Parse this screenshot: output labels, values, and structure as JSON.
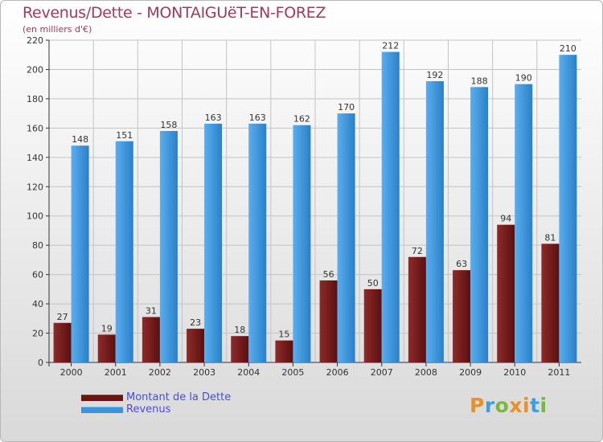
{
  "title": "Revenus/Dette - MONTAIGUëT-EN-FOREZ",
  "subtitle": "(en milliers d'€)",
  "logo": {
    "text": "Proxiti",
    "letters": [
      "P",
      "r",
      "o",
      "x",
      "i",
      "t",
      "i"
    ],
    "colors": [
      "#e8902a",
      "#3d9ee8",
      "#7ab83c",
      "#e8902a",
      "#e8902a",
      "#3d9ee8",
      "#7ab83c"
    ]
  },
  "colors": {
    "dette": "#7a1e1e",
    "revenus": "#3a93de",
    "title": "#a23a5a",
    "legend_text": "#4a4ae0"
  },
  "chart_data": {
    "type": "bar",
    "title": "Revenus/Dette - MONTAIGUëT-EN-FOREZ",
    "subtitle": "(en milliers d'€)",
    "categories": [
      "2000",
      "2001",
      "2002",
      "2003",
      "2004",
      "2005",
      "2006",
      "2007",
      "2008",
      "2009",
      "2010",
      "2011"
    ],
    "series": [
      {
        "name": "Montant de la Dette",
        "values": [
          27,
          19,
          31,
          23,
          18,
          15,
          56,
          50,
          72,
          63,
          94,
          81
        ]
      },
      {
        "name": "Revenus",
        "values": [
          148,
          151,
          158,
          163,
          163,
          162,
          170,
          212,
          192,
          188,
          190,
          210
        ]
      }
    ],
    "yticks": [
      "0",
      "20",
      "40",
      "60",
      "80",
      "100",
      "120",
      "140",
      "160",
      "180",
      "200",
      "220"
    ],
    "ylim": [
      0,
      220
    ],
    "grid": true,
    "data_labels": true,
    "legend_position": "bottom-left"
  }
}
